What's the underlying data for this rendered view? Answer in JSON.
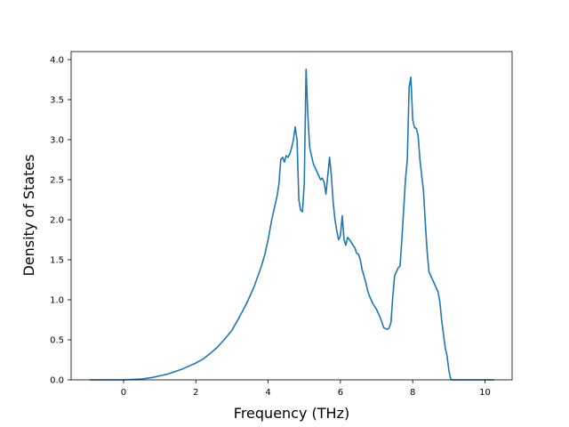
{
  "chart_data": {
    "type": "line",
    "title": "",
    "xlabel": "Frequency (THz)",
    "ylabel": "Density of States",
    "xlim": [
      -1.45,
      10.75
    ],
    "ylim": [
      0,
      4.1
    ],
    "xticks": [
      0,
      2,
      4,
      6,
      8,
      10
    ],
    "yticks": [
      0.0,
      0.5,
      1.0,
      1.5,
      2.0,
      2.5,
      3.0,
      3.5,
      4.0
    ],
    "xtick_labels": [
      "0",
      "2",
      "4",
      "6",
      "8",
      "10"
    ],
    "ytick_labels": [
      "0.0",
      "0.5",
      "1.0",
      "1.5",
      "2.0",
      "2.5",
      "3.0",
      "3.5",
      "4.0"
    ],
    "grid": false,
    "legend": false,
    "series": [
      {
        "color": "#1f77b4",
        "x": [
          -0.93,
          0.0,
          0.5,
          0.8,
          1.0,
          1.2,
          1.4,
          1.6,
          1.8,
          2.0,
          2.2,
          2.4,
          2.6,
          2.8,
          3.0,
          3.2,
          3.4,
          3.6,
          3.8,
          3.9,
          4.0,
          4.1,
          4.2,
          4.25,
          4.3,
          4.35,
          4.4,
          4.45,
          4.5,
          4.55,
          4.6,
          4.65,
          4.7,
          4.75,
          4.8,
          4.85,
          4.9,
          4.95,
          5.0,
          5.05,
          5.1,
          5.15,
          5.2,
          5.25,
          5.3,
          5.35,
          5.4,
          5.45,
          5.5,
          5.55,
          5.6,
          5.65,
          5.7,
          5.75,
          5.8,
          5.85,
          5.9,
          5.95,
          6.0,
          6.05,
          6.1,
          6.15,
          6.2,
          6.25,
          6.3,
          6.35,
          6.4,
          6.45,
          6.5,
          6.55,
          6.6,
          6.65,
          6.7,
          6.75,
          6.8,
          6.9,
          7.0,
          7.1,
          7.2,
          7.3,
          7.35,
          7.4,
          7.45,
          7.5,
          7.55,
          7.6,
          7.65,
          7.7,
          7.8,
          7.85,
          7.9,
          7.95,
          8.0,
          8.05,
          8.1,
          8.15,
          8.2,
          8.25,
          8.3,
          8.35,
          8.4,
          8.45,
          8.5,
          8.55,
          8.6,
          8.65,
          8.7,
          8.75,
          8.8,
          8.9,
          8.95,
          9.0,
          9.05,
          9.1,
          9.15,
          9.2,
          9.25,
          9.3,
          9.35,
          10.0,
          10.25
        ],
        "y": [
          0.0,
          0.0,
          0.01,
          0.03,
          0.05,
          0.07,
          0.1,
          0.13,
          0.17,
          0.21,
          0.26,
          0.33,
          0.41,
          0.51,
          0.62,
          0.78,
          0.95,
          1.15,
          1.4,
          1.55,
          1.75,
          2.0,
          2.2,
          2.3,
          2.45,
          2.75,
          2.78,
          2.72,
          2.8,
          2.78,
          2.82,
          2.9,
          3.0,
          3.16,
          3.0,
          2.25,
          2.12,
          2.1,
          2.45,
          3.88,
          3.3,
          2.9,
          2.8,
          2.7,
          2.65,
          2.6,
          2.55,
          2.5,
          2.52,
          2.47,
          2.32,
          2.55,
          2.78,
          2.55,
          2.22,
          2.0,
          1.86,
          1.75,
          1.8,
          2.05,
          1.75,
          1.68,
          1.78,
          1.75,
          1.72,
          1.68,
          1.65,
          1.58,
          1.57,
          1.5,
          1.38,
          1.3,
          1.22,
          1.12,
          1.05,
          0.95,
          0.88,
          0.78,
          0.65,
          0.63,
          0.65,
          0.72,
          1.05,
          1.3,
          1.35,
          1.4,
          1.42,
          1.75,
          2.5,
          2.75,
          3.65,
          3.78,
          3.25,
          3.15,
          3.14,
          3.05,
          2.75,
          2.55,
          2.35,
          1.95,
          1.6,
          1.35,
          1.3,
          1.25,
          1.2,
          1.15,
          1.1,
          0.98,
          0.75,
          0.4,
          0.3,
          0.12,
          0.01,
          0.0,
          0.0,
          0.0,
          0.0,
          0.0,
          0.0,
          0.0,
          0.0
        ]
      }
    ]
  }
}
